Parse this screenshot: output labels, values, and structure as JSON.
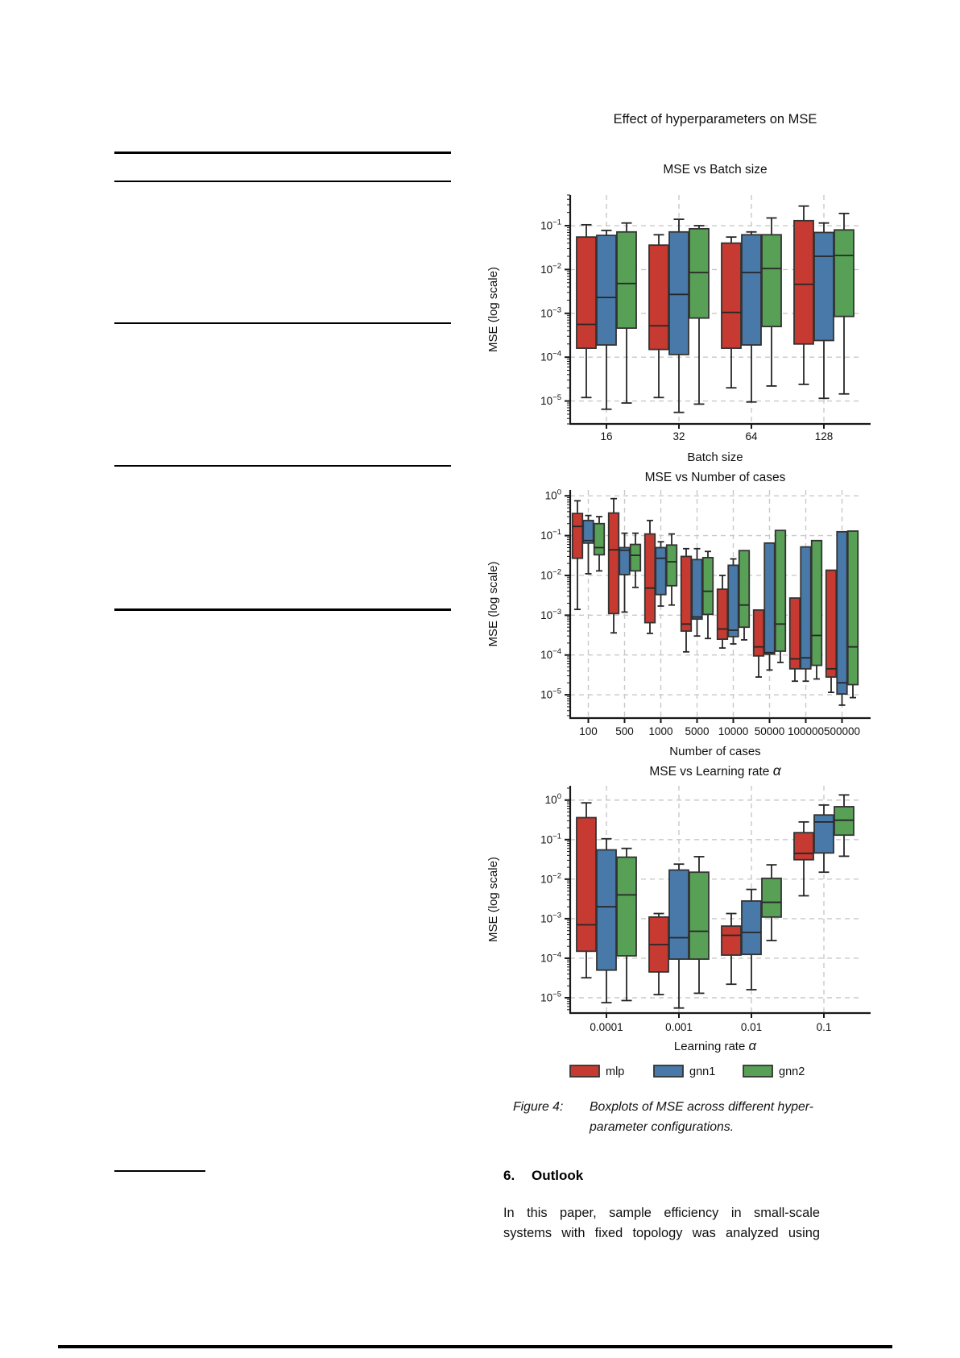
{
  "page": {
    "caption": {
      "label": "Figure 4:",
      "line1": "Boxplots of MSE across different hyper-",
      "line2": "parameter configurations."
    },
    "section": {
      "number": "6.",
      "title": "Outlook"
    },
    "paragraph_lines": [
      "In this paper, sample efficiency in small-scale",
      "systems with fixed topology was analyzed using"
    ]
  },
  "figure": {
    "suptitle": "Effect of hyperparameters on MSE",
    "legend": [
      {
        "label": "mlp",
        "color": "#c63a31"
      },
      {
        "label": "gnn1",
        "color": "#4879a8"
      },
      {
        "label": "gnn2",
        "color": "#57a056"
      }
    ],
    "edge_color": "#333333",
    "median_color": "#262626",
    "grid_color": "#c9c9c9",
    "spine_color": "#1a1a1a"
  },
  "chart_data": [
    {
      "type": "box",
      "title": "MSE vs Batch size",
      "xlabel": "Batch size",
      "ylabel": "MSE (log scale)",
      "yscale": "log",
      "ylim": [
        3e-06,
        0.5
      ],
      "ytick_exponents": [
        -1,
        -2,
        -3,
        -4,
        -5
      ],
      "grid": true,
      "legend_position": "figure-bottom",
      "categories": [
        "16",
        "32",
        "64",
        "128"
      ],
      "series": [
        {
          "name": "mlp",
          "color": "#c63a31",
          "boxes": [
            [
              1.2e-05,
              0.00016,
              0.00056,
              0.055,
              0.105
            ],
            [
              1.2e-05,
              0.00015,
              0.00052,
              0.036,
              0.062
            ],
            [
              2e-05,
              0.00016,
              0.00105,
              0.04,
              0.055
            ],
            [
              2.4e-05,
              0.0002,
              0.0046,
              0.13,
              0.28
            ]
          ]
        },
        {
          "name": "gnn1",
          "color": "#4879a8",
          "boxes": [
            [
              6.5e-06,
              0.00019,
              0.0023,
              0.06,
              0.078
            ],
            [
              5.5e-06,
              0.000115,
              0.0027,
              0.072,
              0.14
            ],
            [
              9.5e-06,
              0.00019,
              0.0085,
              0.062,
              0.072
            ],
            [
              1.15e-05,
              0.00024,
              0.02,
              0.07,
              0.115
            ]
          ]
        },
        {
          "name": "gnn2",
          "color": "#57a056",
          "boxes": [
            [
              9e-06,
              0.00046,
              0.0048,
              0.072,
              0.115
            ],
            [
              8.5e-06,
              0.00078,
              0.0085,
              0.085,
              0.1
            ],
            [
              2.2e-05,
              0.0005,
              0.0105,
              0.062,
              0.15
            ],
            [
              1.45e-05,
              0.00085,
              0.021,
              0.08,
              0.19
            ]
          ]
        }
      ]
    },
    {
      "type": "box",
      "title": "MSE vs Number of cases",
      "xlabel": "Number of cases",
      "ylabel": "MSE (log scale)",
      "yscale": "log",
      "ylim": [
        2.6e-06,
        1.4
      ],
      "ytick_exponents": [
        0,
        -1,
        -2,
        -3,
        -4,
        -5
      ],
      "grid": true,
      "categories": [
        "100",
        "500",
        "1000",
        "5000",
        "10000",
        "50000",
        "100000",
        "500000"
      ],
      "series": [
        {
          "name": "mlp",
          "color": "#c63a31",
          "boxes": [
            [
              0.0014,
              0.027,
              0.17,
              0.36,
              0.75
            ],
            [
              0.00036,
              0.0011,
              0.044,
              0.37,
              0.85
            ],
            [
              0.00035,
              0.00065,
              0.0048,
              0.11,
              0.24
            ],
            [
              0.00012,
              0.0004,
              0.0006,
              0.03,
              0.047
            ],
            [
              0.00015,
              0.00025,
              0.00045,
              0.0045,
              0.01
            ],
            [
              2.8e-05,
              9.5e-05,
              0.00016,
              0.00135,
              0.00135
            ],
            [
              2.2e-05,
              4.5e-05,
              8e-05,
              0.0027,
              0.0027
            ],
            [
              1.15e-05,
              2.8e-05,
              4.5e-05,
              0.0135,
              0.0135
            ]
          ]
        },
        {
          "name": "gnn1",
          "color": "#4879a8",
          "boxes": [
            [
              0.011,
              0.065,
              0.075,
              0.24,
              0.32
            ],
            [
              0.0012,
              0.0105,
              0.043,
              0.05,
              0.115
            ],
            [
              0.0017,
              0.0033,
              0.027,
              0.05,
              0.07
            ],
            [
              0.0003,
              0.0008,
              0.0009,
              0.025,
              0.047
            ],
            [
              0.00019,
              0.00029,
              0.00042,
              0.018,
              0.026
            ],
            [
              4.2e-05,
              0.000105,
              0.000115,
              0.065,
              0.065
            ],
            [
              2.2e-05,
              4.5e-05,
              8.5e-05,
              0.052,
              0.052
            ],
            [
              5.5e-06,
              1.05e-05,
              2e-05,
              0.125,
              0.125
            ]
          ]
        },
        {
          "name": "gnn2",
          "color": "#57a056",
          "boxes": [
            [
              0.013,
              0.033,
              0.05,
              0.2,
              0.3
            ],
            [
              0.005,
              0.013,
              0.032,
              0.06,
              0.115
            ],
            [
              0.0018,
              0.0055,
              0.022,
              0.058,
              0.11
            ],
            [
              0.00026,
              0.00105,
              0.004,
              0.028,
              0.04
            ],
            [
              0.00024,
              0.0005,
              0.0018,
              0.042,
              0.042
            ],
            [
              6.5e-05,
              0.000125,
              0.0006,
              0.135,
              0.135
            ],
            [
              2.5e-05,
              5.5e-05,
              0.00031,
              0.075,
              0.075
            ],
            [
              8.5e-06,
              1.8e-05,
              0.00016,
              0.13,
              0.13
            ]
          ]
        }
      ]
    },
    {
      "type": "box",
      "title": "MSE vs Learning rate α",
      "xlabel": "Learning rate α",
      "ylabel": "MSE (log scale)",
      "yscale": "log",
      "ylim": [
        4.1e-06,
        2.3
      ],
      "ytick_exponents": [
        0,
        -1,
        -2,
        -3,
        -4,
        -5
      ],
      "grid": true,
      "categories": [
        "0.0001",
        "0.001",
        "0.01",
        "0.1"
      ],
      "series": [
        {
          "name": "mlp",
          "color": "#c63a31",
          "boxes": [
            [
              3.2e-05,
              0.00015,
              0.0007,
              0.36,
              0.85
            ],
            [
              1.2e-05,
              4.5e-05,
              0.00022,
              0.0011,
              0.00135
            ],
            [
              2.2e-05,
              0.00012,
              0.00038,
              0.00065,
              0.00135
            ],
            [
              0.0038,
              0.031,
              0.045,
              0.15,
              0.28
            ]
          ]
        },
        {
          "name": "gnn1",
          "color": "#4879a8",
          "boxes": [
            [
              7.5e-06,
              5e-05,
              0.002,
              0.055,
              0.105
            ],
            [
              5.5e-06,
              9.5e-05,
              0.00033,
              0.017,
              0.024
            ],
            [
              1.6e-05,
              0.000125,
              0.00045,
              0.0028,
              0.0055
            ],
            [
              0.015,
              0.046,
              0.28,
              0.42,
              0.75
            ]
          ]
        },
        {
          "name": "gnn2",
          "color": "#57a056",
          "boxes": [
            [
              8.5e-06,
              0.000115,
              0.004,
              0.036,
              0.06
            ],
            [
              1.3e-05,
              9.5e-05,
              0.00048,
              0.015,
              0.037
            ],
            [
              0.00028,
              0.0011,
              0.0026,
              0.0105,
              0.023
            ],
            [
              0.038,
              0.13,
              0.31,
              0.68,
              1.35
            ]
          ]
        }
      ]
    }
  ]
}
